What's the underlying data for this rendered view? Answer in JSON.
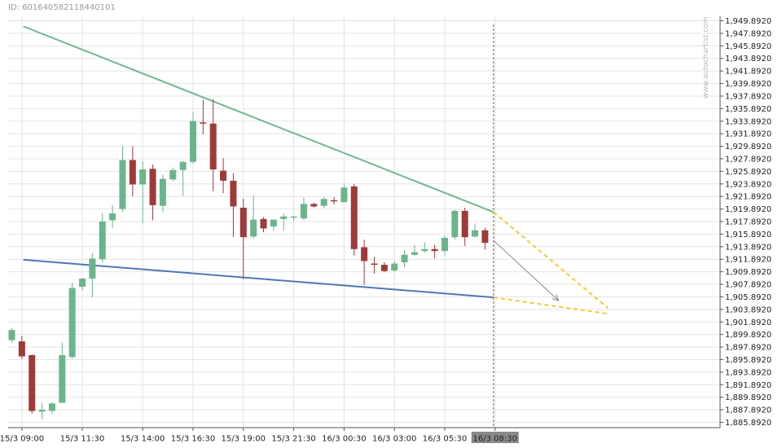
{
  "header": {
    "id_text": "ID: 601640582118440101"
  },
  "watermark": "www.autochartist.com",
  "colors": {
    "up": "#6cb48c",
    "down": "#9e3a3a",
    "resistance": "#6fb893",
    "support": "#4f77b5",
    "projection": "#f2cd2a",
    "grid": "#e4e4e4",
    "arrow": "#888888"
  },
  "chart_data": {
    "type": "candlestick",
    "title": "",
    "xlabel": "",
    "ylabel": "",
    "ylim": [
      1884.892,
      1950.892
    ],
    "y_ticks": [
      "1,949.8920",
      "1,947.8920",
      "1,945.8920",
      "1,943.8920",
      "1,941.8920",
      "1,939.8920",
      "1,937.8920",
      "1,935.8920",
      "1,933.8920",
      "1,931.8920",
      "1,929.8920",
      "1,927.8920",
      "1,925.8920",
      "1,923.8920",
      "1,921.8920",
      "1,919.8920",
      "1,917.8920",
      "1,915.8920",
      "1,913.8920",
      "1,911.8920",
      "1,909.8920",
      "1,907.8920",
      "1,905.8920",
      "1,903.8920",
      "1,901.8920",
      "1,899.8920",
      "1,897.8920",
      "1,895.8920",
      "1,893.8920",
      "1,891.8920",
      "1,889.8920",
      "1,887.8920",
      "1,885.8920"
    ],
    "x_labels": [
      "15/3 09:00",
      "15/3 11:30",
      "15/3 14:00",
      "15/3 16:30",
      "15/3 19:00",
      "15/3 21:30",
      "16/3 00:30",
      "16/3 03:00",
      "16/3 05:30",
      "16/3 08:30"
    ],
    "x_label_index": [
      1,
      7,
      13,
      18,
      23,
      28,
      33,
      38,
      43,
      48
    ],
    "highlight_label": "16/3 08:30",
    "candles": [
      {
        "o": 1899.0,
        "h": 1900.9,
        "l": 1898.6,
        "c": 1900.6
      },
      {
        "o": 1898.8,
        "h": 1899.7,
        "l": 1896.0,
        "c": 1896.4
      },
      {
        "o": 1896.6,
        "h": 1896.7,
        "l": 1887.3,
        "c": 1887.7
      },
      {
        "o": 1887.6,
        "h": 1889.0,
        "l": 1886.4,
        "c": 1887.9
      },
      {
        "o": 1887.7,
        "h": 1889.1,
        "l": 1887.2,
        "c": 1888.9
      },
      {
        "o": 1889.0,
        "h": 1898.6,
        "l": 1889.0,
        "c": 1896.6
      },
      {
        "o": 1896.3,
        "h": 1908.2,
        "l": 1896.0,
        "c": 1907.3
      },
      {
        "o": 1907.5,
        "h": 1908.9,
        "l": 1906.9,
        "c": 1908.8
      },
      {
        "o": 1908.8,
        "h": 1912.9,
        "l": 1905.8,
        "c": 1912.0
      },
      {
        "o": 1911.9,
        "h": 1919.2,
        "l": 1911.4,
        "c": 1917.9
      },
      {
        "o": 1918.1,
        "h": 1920.5,
        "l": 1916.9,
        "c": 1919.2
      },
      {
        "o": 1919.9,
        "h": 1930.0,
        "l": 1919.4,
        "c": 1927.7
      },
      {
        "o": 1927.7,
        "h": 1929.9,
        "l": 1921.9,
        "c": 1923.8
      },
      {
        "o": 1923.8,
        "h": 1927.5,
        "l": 1917.6,
        "c": 1926.2
      },
      {
        "o": 1926.3,
        "h": 1927.0,
        "l": 1918.1,
        "c": 1920.5
      },
      {
        "o": 1920.4,
        "h": 1925.4,
        "l": 1919.4,
        "c": 1924.7
      },
      {
        "o": 1924.6,
        "h": 1926.5,
        "l": 1924.3,
        "c": 1926.1
      },
      {
        "o": 1926.1,
        "h": 1927.5,
        "l": 1922.0,
        "c": 1927.4
      },
      {
        "o": 1927.4,
        "h": 1935.3,
        "l": 1927.1,
        "c": 1933.9
      },
      {
        "o": 1933.7,
        "h": 1937.3,
        "l": 1931.8,
        "c": 1933.5
      },
      {
        "o": 1933.5,
        "h": 1937.4,
        "l": 1922.7,
        "c": 1926.2
      },
      {
        "o": 1926.0,
        "h": 1928.0,
        "l": 1922.4,
        "c": 1924.4
      },
      {
        "o": 1924.4,
        "h": 1925.6,
        "l": 1915.4,
        "c": 1920.3
      },
      {
        "o": 1920.1,
        "h": 1921.5,
        "l": 1908.7,
        "c": 1915.4
      },
      {
        "o": 1915.5,
        "h": 1922.1,
        "l": 1915.2,
        "c": 1918.2
      },
      {
        "o": 1918.3,
        "h": 1918.6,
        "l": 1916.2,
        "c": 1916.8
      },
      {
        "o": 1917.1,
        "h": 1918.2,
        "l": 1916.4,
        "c": 1918.2
      },
      {
        "o": 1918.3,
        "h": 1919.2,
        "l": 1916.5,
        "c": 1918.7
      },
      {
        "o": 1918.6,
        "h": 1918.8,
        "l": 1918.0,
        "c": 1918.7
      },
      {
        "o": 1918.4,
        "h": 1921.7,
        "l": 1918.1,
        "c": 1920.7
      },
      {
        "o": 1920.7,
        "h": 1920.9,
        "l": 1920.1,
        "c": 1920.3
      },
      {
        "o": 1920.4,
        "h": 1921.8,
        "l": 1920.1,
        "c": 1921.5
      },
      {
        "o": 1921.3,
        "h": 1921.8,
        "l": 1920.6,
        "c": 1921.2
      },
      {
        "o": 1921.0,
        "h": 1923.8,
        "l": 1920.9,
        "c": 1923.3
      },
      {
        "o": 1923.5,
        "h": 1923.9,
        "l": 1912.5,
        "c": 1913.5
      },
      {
        "o": 1913.8,
        "h": 1915.0,
        "l": 1907.8,
        "c": 1911.6
      },
      {
        "o": 1911.2,
        "h": 1912.2,
        "l": 1909.6,
        "c": 1911.0
      },
      {
        "o": 1911.0,
        "h": 1911.4,
        "l": 1909.8,
        "c": 1910.0
      },
      {
        "o": 1910.1,
        "h": 1911.6,
        "l": 1909.9,
        "c": 1911.2
      },
      {
        "o": 1911.4,
        "h": 1913.3,
        "l": 1910.6,
        "c": 1912.6
      },
      {
        "o": 1912.6,
        "h": 1914.2,
        "l": 1912.4,
        "c": 1913.0
      },
      {
        "o": 1913.2,
        "h": 1914.6,
        "l": 1912.9,
        "c": 1913.5
      },
      {
        "o": 1913.5,
        "h": 1914.2,
        "l": 1912.0,
        "c": 1913.2
      },
      {
        "o": 1913.2,
        "h": 1915.7,
        "l": 1912.5,
        "c": 1915.3
      },
      {
        "o": 1915.4,
        "h": 1919.8,
        "l": 1915.0,
        "c": 1919.6
      },
      {
        "o": 1919.6,
        "h": 1920.1,
        "l": 1914.0,
        "c": 1915.4
      },
      {
        "o": 1915.5,
        "h": 1917.6,
        "l": 1915.4,
        "c": 1916.5
      },
      {
        "o": 1916.5,
        "h": 1916.9,
        "l": 1913.4,
        "c": 1914.5
      }
    ],
    "resistance_line": [
      {
        "i": 1.15,
        "y": 1949.0
      },
      {
        "i": 47.85,
        "y": 1919.4
      }
    ],
    "support_line": [
      {
        "i": 1.15,
        "y": 1911.8
      },
      {
        "i": 47.85,
        "y": 1905.8
      }
    ],
    "resistance_projection": [
      {
        "i": 47.85,
        "y": 1919.4
      },
      {
        "i": 59.2,
        "y": 1904.1
      }
    ],
    "support_projection": [
      {
        "i": 47.85,
        "y": 1905.8
      },
      {
        "i": 59.2,
        "y": 1903.2
      }
    ],
    "forecast_arrow": [
      {
        "i": 47.9,
        "y": 1914.8
      },
      {
        "i": 54.3,
        "y": 1905.3
      }
    ],
    "current_index": 47.85
  }
}
